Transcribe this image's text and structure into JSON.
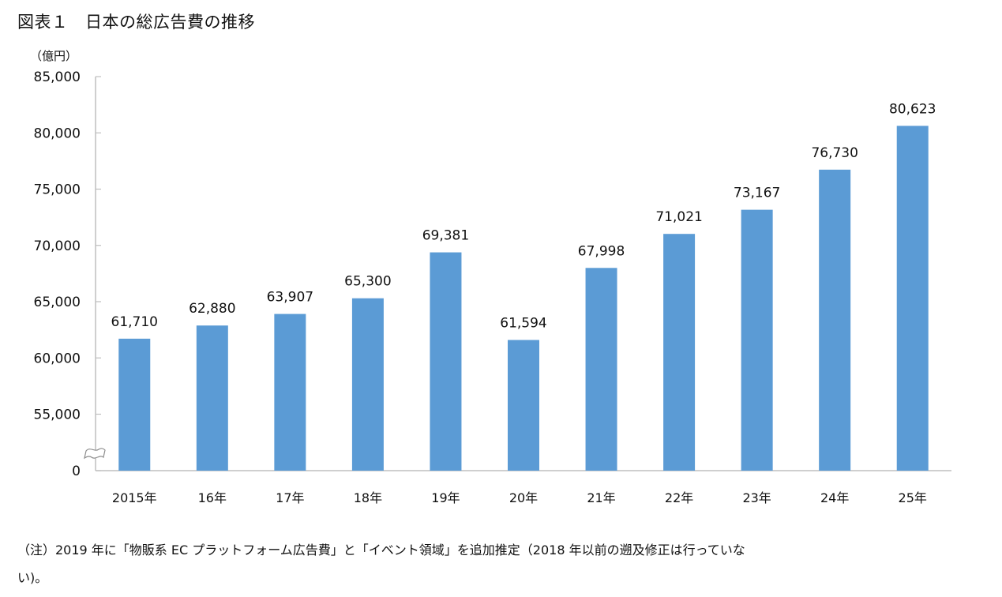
{
  "header": {
    "title": "図表１　日本の総広告費の推移",
    "unit": "（億円）"
  },
  "colors": {
    "bar": "#5B9BD5",
    "axis": "#BFBFBF"
  },
  "chart_data": {
    "type": "bar",
    "title": "図表１　日本の総広告費の推移",
    "xlabel": "",
    "ylabel": "（億円）",
    "categories": [
      "2015年",
      "16年",
      "17年",
      "18年",
      "19年",
      "20年",
      "21年",
      "22年",
      "23年",
      "24年",
      "25年"
    ],
    "values": [
      61710,
      62880,
      63907,
      65300,
      69381,
      61594,
      67998,
      71021,
      73167,
      76730,
      80623
    ],
    "value_labels": [
      "61,710",
      "62,880",
      "63,907",
      "65,300",
      "69,381",
      "61,594",
      "67,998",
      "71,021",
      "73,167",
      "76,730",
      "80,623"
    ],
    "y_ticks": [
      0,
      55000,
      60000,
      65000,
      70000,
      75000,
      80000,
      85000
    ],
    "y_tick_labels": [
      "0",
      "55,000",
      "60,000",
      "65,000",
      "70,000",
      "75,000",
      "80,000",
      "85,000"
    ],
    "ylim": [
      50000,
      85000
    ],
    "axis_break": true,
    "grid": false,
    "legend": "none"
  },
  "notes": {
    "line1": "（注）2019 年に「物販系 EC プラットフォーム広告費」と「イベント領域」を追加推定（2018 年以前の遡及修正は行っていな",
    "line2": "い)。"
  }
}
